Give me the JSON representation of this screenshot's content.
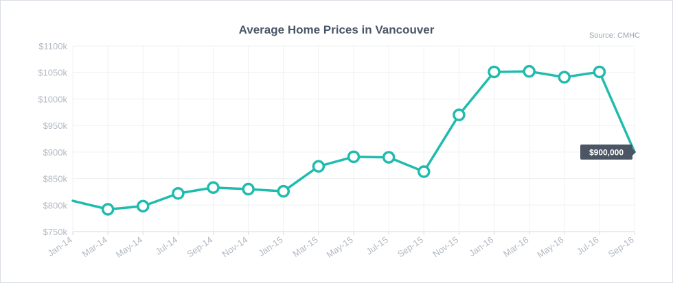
{
  "chart_data": {
    "type": "line",
    "title": "Average Home Prices in Vancouver",
    "source": "Source: CMHC",
    "x": [
      "Jan-14",
      "Mar-14",
      "May-14",
      "Jul-14",
      "Sep-14",
      "Nov-14",
      "Jan-15",
      "Mar-15",
      "May-15",
      "Jul-15",
      "Sep-15",
      "Nov-15",
      "Jan-16",
      "Mar-16",
      "May-16",
      "Jul-16",
      "Sep-16"
    ],
    "series": [
      {
        "values": [
          808000,
          792000,
          798000,
          822000,
          833000,
          830000,
          826000,
          873000,
          891000,
          890000,
          863000,
          970000,
          1051000,
          1052000,
          1041000,
          1051000,
          900000
        ]
      }
    ],
    "ylim": [
      750000,
      1100000
    ],
    "yticks": [
      750000,
      800000,
      850000,
      900000,
      950000,
      1000000,
      1050000,
      1100000
    ],
    "ytick_labels": [
      "$750k",
      "$800k",
      "$850k",
      "$900k",
      "$950k",
      "$1000k",
      "$1050k",
      "$1100k"
    ],
    "tooltip": "$900,000",
    "grid": true,
    "legend": "none",
    "colors": {
      "line": "#1fbcae",
      "marker_fill": "#ffffff",
      "grid": "#edf0f3",
      "tooltip_bg": "#4b5563",
      "axis_text": "#b3b9c2"
    }
  }
}
